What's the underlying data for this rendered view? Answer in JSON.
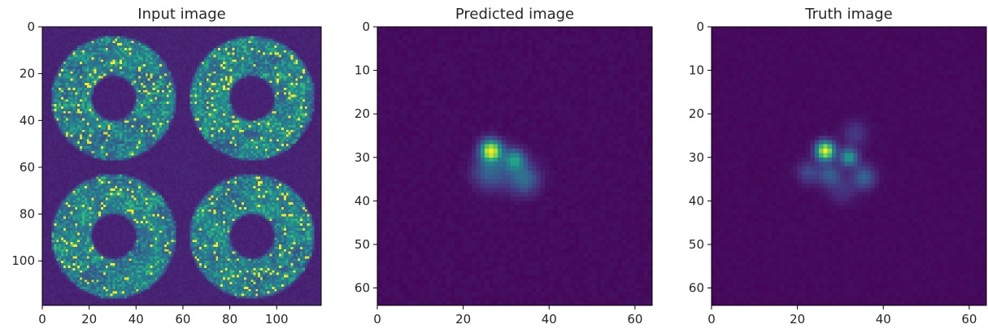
{
  "colors": {
    "background": "#440154",
    "colormap": "viridis",
    "stops": [
      "#440154",
      "#482878",
      "#3e4a89",
      "#31688e",
      "#26828e",
      "#1f9e89",
      "#35b779",
      "#6ece58",
      "#b5de2b",
      "#fde725"
    ]
  },
  "chart_data": [
    {
      "type": "heatmap",
      "title": "Input image",
      "xlabel": "",
      "ylabel": "",
      "grid": false,
      "xlim": [
        0,
        119
      ],
      "ylim": [
        119,
        0
      ],
      "xticks": [
        0,
        20,
        40,
        60,
        80,
        100
      ],
      "yticks": [
        0,
        20,
        40,
        60,
        80,
        100
      ],
      "grid_size": [
        119,
        119
      ],
      "features": {
        "rings": [
          {
            "center": [
              30,
              30
            ],
            "inner_radius": 9,
            "outer_radius": 27
          },
          {
            "center": [
              89,
              30
            ],
            "inner_radius": 9,
            "outer_radius": 27
          },
          {
            "center": [
              30,
              89
            ],
            "inner_radius": 9,
            "outer_radius": 27
          },
          {
            "center": [
              89,
              89
            ],
            "inner_radius": 9,
            "outer_radius": 27
          }
        ],
        "speckle": "high",
        "intensity_range": [
          0.05,
          1.0
        ]
      }
    },
    {
      "type": "heatmap",
      "title": "Predicted image",
      "xlabel": "",
      "ylabel": "",
      "grid": false,
      "xlim": [
        0,
        64
      ],
      "ylim": [
        64,
        0
      ],
      "xticks": [
        0,
        20,
        40,
        60
      ],
      "yticks": [
        0,
        10,
        20,
        30,
        40,
        50,
        60
      ],
      "grid_size": [
        64,
        64
      ],
      "features": {
        "peaks": [
          {
            "x": 26,
            "y": 28,
            "amplitude": 1.0,
            "sigma": 1.7
          },
          {
            "x": 31.5,
            "y": 30,
            "amplitude": 0.5,
            "sigma": 1.6
          },
          {
            "x": 25,
            "y": 33,
            "amplitude": 0.25,
            "sigma": 2.4
          },
          {
            "x": 34,
            "y": 34.5,
            "amplitude": 0.3,
            "sigma": 2.3
          },
          {
            "x": 29.5,
            "y": 33,
            "amplitude": 0.15,
            "sigma": 3.0
          }
        ],
        "background_noise": 0.03
      }
    },
    {
      "type": "heatmap",
      "title": "Truth image",
      "xlabel": "",
      "ylabel": "",
      "grid": false,
      "xlim": [
        0,
        64
      ],
      "ylim": [
        64,
        0
      ],
      "xticks": [
        0,
        20,
        40,
        60
      ],
      "yticks": [
        0,
        10,
        20,
        30,
        40,
        50,
        60
      ],
      "grid_size": [
        64,
        64
      ],
      "features": {
        "peaks": [
          {
            "x": 26,
            "y": 28,
            "amplitude": 1.0,
            "sigma": 1.5
          },
          {
            "x": 31.5,
            "y": 29.5,
            "amplitude": 0.55,
            "sigma": 1.4
          },
          {
            "x": 22,
            "y": 33,
            "amplitude": 0.2,
            "sigma": 1.8
          },
          {
            "x": 27,
            "y": 33.5,
            "amplitude": 0.28,
            "sigma": 1.8
          },
          {
            "x": 35,
            "y": 34,
            "amplitude": 0.3,
            "sigma": 1.9
          },
          {
            "x": 33,
            "y": 24,
            "amplitude": 0.15,
            "sigma": 2.0
          },
          {
            "x": 30,
            "y": 37,
            "amplitude": 0.12,
            "sigma": 2.2
          }
        ],
        "background_noise": 0.02
      }
    }
  ]
}
